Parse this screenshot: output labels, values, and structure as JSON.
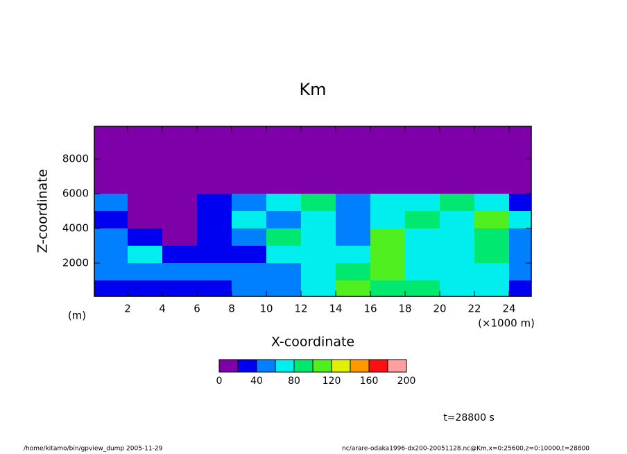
{
  "chart_data": {
    "type": "heatmap",
    "title": "Km",
    "x_label": "X-coordinate",
    "y_label": "Z-coordinate",
    "y_unit": "(m)",
    "x_unit": "(×1000 m)",
    "xlim": [
      0,
      25.3
    ],
    "ylim": [
      0,
      10000
    ],
    "xticks": [
      2,
      4,
      6,
      8,
      10,
      12,
      14,
      16,
      18,
      20,
      22,
      24
    ],
    "yticks": [
      2000,
      4000,
      6000,
      8000
    ],
    "x": [
      1,
      3,
      5,
      7,
      9,
      11,
      13,
      15,
      17,
      19,
      21,
      23,
      25
    ],
    "y": [
      9500,
      8500,
      7500,
      6500,
      5500,
      4500,
      3500,
      2500,
      1500,
      500
    ],
    "values": [
      [
        5,
        5,
        5,
        5,
        5,
        5,
        5,
        5,
        5,
        5,
        5,
        5,
        5
      ],
      [
        5,
        5,
        5,
        5,
        5,
        5,
        5,
        5,
        5,
        5,
        5,
        5,
        5
      ],
      [
        5,
        5,
        5,
        5,
        5,
        5,
        5,
        5,
        5,
        5,
        5,
        5,
        5
      ],
      [
        5,
        5,
        5,
        5,
        5,
        5,
        5,
        10,
        5,
        5,
        5,
        5,
        5
      ],
      [
        50,
        10,
        10,
        30,
        50,
        70,
        80,
        50,
        60,
        70,
        80,
        60,
        30
      ],
      [
        30,
        10,
        10,
        20,
        60,
        50,
        70,
        50,
        60,
        90,
        70,
        100,
        60
      ],
      [
        40,
        30,
        10,
        20,
        50,
        80,
        70,
        40,
        110,
        60,
        60,
        80,
        40
      ],
      [
        50,
        60,
        30,
        30,
        30,
        60,
        60,
        70,
        100,
        70,
        70,
        80,
        40
      ],
      [
        40,
        40,
        40,
        40,
        40,
        50,
        70,
        80,
        100,
        70,
        60,
        60,
        40
      ],
      [
        30,
        30,
        30,
        30,
        40,
        40,
        60,
        100,
        80,
        90,
        60,
        60,
        30
      ]
    ],
    "levels": [
      0,
      20,
      40,
      60,
      80,
      100,
      120,
      140,
      160,
      180,
      200
    ],
    "colors": [
      "#7d00a8",
      "#0000f0",
      "#0080ff",
      "#00eeee",
      "#00e870",
      "#50f020",
      "#e0f000",
      "#ff9900",
      "#ff1010",
      "#ff9f9f"
    ],
    "colorbar_ticks": [
      0,
      40,
      80,
      120,
      160,
      200
    ],
    "annotation": "t=28800 s",
    "footer_left": "/home/kitamo/bin/gpview_dump  2005-11-29",
    "footer_right": "nc/arare-odaka1996-dx200-20051128.nc@Km,x=0:25600,z=0:10000,t=28800"
  }
}
